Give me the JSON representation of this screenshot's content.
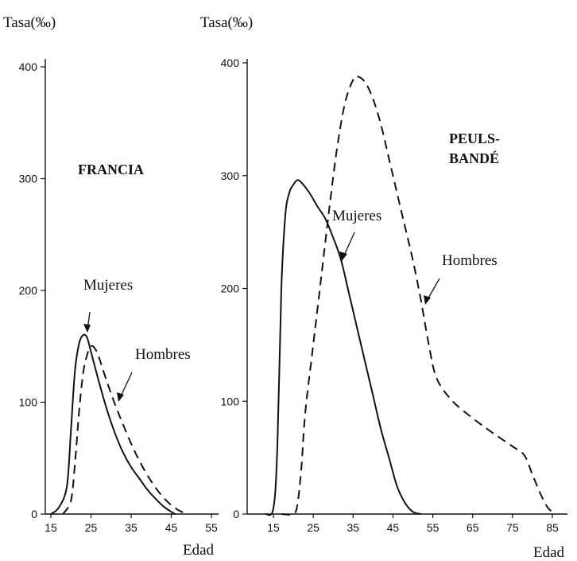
{
  "chart_data": [
    {
      "type": "line",
      "title": "FRANCIA",
      "ylabel": "Tasa(‰)",
      "xlabel": "Edad",
      "ylim": [
        0,
        400
      ],
      "xlim": [
        15,
        55
      ],
      "y_ticks": [
        "0",
        "100",
        "200",
        "300",
        "400"
      ],
      "x_ticks": [
        "15",
        "25",
        "35",
        "45",
        "55"
      ],
      "series": [
        {
          "name": "Mujeres",
          "style": "solid",
          "color": "#111111",
          "points": [
            [
              15,
              0
            ],
            [
              17,
              6
            ],
            [
              19,
              25
            ],
            [
              20,
              75
            ],
            [
              21,
              128
            ],
            [
              22,
              152
            ],
            [
              23,
              160
            ],
            [
              24,
              158
            ],
            [
              25,
              145
            ],
            [
              27,
              118
            ],
            [
              29,
              93
            ],
            [
              31,
              72
            ],
            [
              33,
              55
            ],
            [
              35,
              42
            ],
            [
              37,
              32
            ],
            [
              39,
              22
            ],
            [
              41,
              14
            ],
            [
              43,
              7
            ],
            [
              45,
              2
            ],
            [
              46,
              0
            ]
          ]
        },
        {
          "name": "Hombres",
          "style": "dashed",
          "color": "#111111",
          "points": [
            [
              18,
              0
            ],
            [
              20,
              12
            ],
            [
              21,
              45
            ],
            [
              22,
              90
            ],
            [
              23,
              125
            ],
            [
              24,
              142
            ],
            [
              25,
              150
            ],
            [
              26,
              148
            ],
            [
              27,
              140
            ],
            [
              29,
              118
            ],
            [
              31,
              98
            ],
            [
              33,
              80
            ],
            [
              35,
              63
            ],
            [
              37,
              48
            ],
            [
              39,
              35
            ],
            [
              41,
              24
            ],
            [
              43,
              15
            ],
            [
              45,
              8
            ],
            [
              47,
              3
            ],
            [
              49,
              0
            ]
          ]
        }
      ],
      "annotations": [
        {
          "text": "Mujeres",
          "series": "Mujeres"
        },
        {
          "text": "Hombres",
          "series": "Hombres"
        }
      ]
    },
    {
      "type": "line",
      "title": "PEULS-\nBANDÉ",
      "title_lines": [
        "PEULS-",
        "BANDÉ"
      ],
      "ylabel": "Tasa(‰)",
      "xlabel": "Edad",
      "ylim": [
        0,
        400
      ],
      "xlim": [
        10,
        90
      ],
      "y_ticks": [
        "0",
        "100",
        "200",
        "300",
        "400"
      ],
      "x_ticks": [
        "15",
        "25",
        "35",
        "45",
        "55",
        "65",
        "75",
        "85"
      ],
      "series": [
        {
          "name": "Mujeres",
          "style": "solid",
          "color": "#111111",
          "points": [
            [
              13,
              0
            ],
            [
              15,
              5
            ],
            [
              16,
              60
            ],
            [
              17,
              200
            ],
            [
              18,
              265
            ],
            [
              19,
              285
            ],
            [
              20,
              292
            ],
            [
              21,
              296
            ],
            [
              22,
              294
            ],
            [
              24,
              285
            ],
            [
              26,
              273
            ],
            [
              28,
              262
            ],
            [
              30,
              245
            ],
            [
              32,
              225
            ],
            [
              34,
              195
            ],
            [
              36,
              165
            ],
            [
              38,
              135
            ],
            [
              40,
              105
            ],
            [
              42,
              75
            ],
            [
              44,
              50
            ],
            [
              46,
              25
            ],
            [
              48,
              10
            ],
            [
              50,
              2
            ],
            [
              52,
              0
            ]
          ]
        },
        {
          "name": "Hombres",
          "style": "dashed",
          "color": "#111111",
          "points": [
            [
              17,
              0
            ],
            [
              20,
              0
            ],
            [
              21,
              8
            ],
            [
              22,
              40
            ],
            [
              23,
              90
            ],
            [
              25,
              150
            ],
            [
              27,
              210
            ],
            [
              29,
              270
            ],
            [
              31,
              325
            ],
            [
              33,
              365
            ],
            [
              35,
              385
            ],
            [
              36,
              388
            ],
            [
              38,
              383
            ],
            [
              40,
              368
            ],
            [
              42,
              345
            ],
            [
              44,
              315
            ],
            [
              46,
              285
            ],
            [
              48,
              255
            ],
            [
              50,
              225
            ],
            [
              52,
              190
            ],
            [
              54,
              150
            ],
            [
              56,
              120
            ],
            [
              60,
              100
            ],
            [
              65,
              85
            ],
            [
              70,
              72
            ],
            [
              75,
              60
            ],
            [
              78,
              52
            ],
            [
              80,
              35
            ],
            [
              82,
              18
            ],
            [
              84,
              5
            ],
            [
              86,
              0
            ]
          ]
        }
      ],
      "annotations": [
        {
          "text": "Mujeres",
          "series": "Mujeres"
        },
        {
          "text": "Hombres",
          "series": "Hombres"
        }
      ]
    }
  ]
}
